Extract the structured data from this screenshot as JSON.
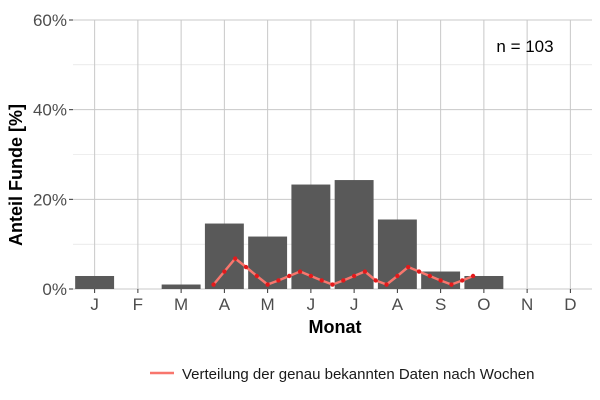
{
  "chart_data": {
    "type": "bar",
    "xlabel": "Monat",
    "ylabel": "Anteil Funde [%]",
    "categories": [
      "J",
      "F",
      "M",
      "A",
      "M",
      "J",
      "J",
      "A",
      "S",
      "O",
      "N",
      "D"
    ],
    "values": [
      2.9,
      0,
      1.0,
      14.6,
      11.7,
      23.3,
      24.3,
      15.5,
      3.9,
      2.9,
      0,
      0
    ],
    "ylim": [
      0,
      60
    ],
    "yticks": [
      0,
      20,
      40,
      60
    ],
    "ytick_labels": [
      "0%",
      "20%",
      "40%",
      "60%"
    ],
    "grid": true,
    "annotation": "n = 103",
    "bar_color": "#595959",
    "line_series": {
      "name": "Verteilung der genau bekannten Daten nach Wochen",
      "color": "#f8766d",
      "point_color": "#e31a1c",
      "x": [
        3.75,
        4.0,
        4.25,
        4.5,
        4.75,
        5.0,
        5.25,
        5.5,
        5.75,
        6.0,
        6.25,
        6.5,
        6.75,
        7.0,
        7.25,
        7.5,
        7.75,
        8.0,
        8.25,
        8.5,
        8.75,
        9.0,
        9.25,
        9.5,
        9.75
      ],
      "y": [
        1.0,
        3.9,
        6.8,
        4.9,
        2.9,
        1.0,
        1.9,
        2.9,
        3.9,
        2.9,
        1.9,
        1.0,
        1.9,
        2.9,
        3.9,
        1.9,
        1.0,
        2.9,
        4.9,
        3.9,
        2.9,
        1.9,
        1.0,
        1.9,
        2.9
      ]
    },
    "legend_position": "bottom"
  }
}
